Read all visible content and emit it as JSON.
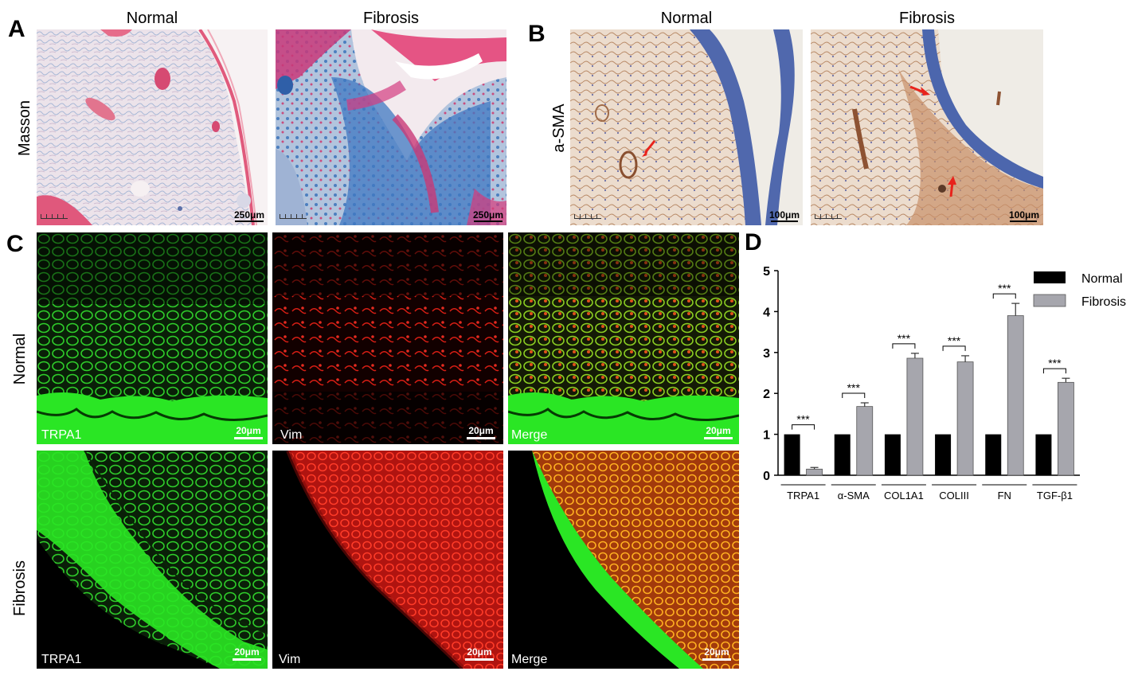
{
  "panels": {
    "a": {
      "letter": "A",
      "columns": [
        "Normal",
        "Fibrosis"
      ],
      "row_label": "Masson",
      "scale_labels": [
        "250μm",
        "250μm"
      ]
    },
    "b": {
      "letter": "B",
      "columns": [
        "Normal",
        "Fibrosis"
      ],
      "row_label": "a-SMA",
      "scale_labels": [
        "100μm",
        "100μm"
      ]
    },
    "c": {
      "letter": "C",
      "rows": [
        "Normal",
        "Fibrosis"
      ],
      "channel_labels": [
        "TRPA1",
        "Vim",
        "Merge"
      ],
      "scale_label": "20μm"
    },
    "d": {
      "letter": "D"
    }
  },
  "colors": {
    "normal_bar": "#000000",
    "fibrosis_bar": "#a6a6ad",
    "arrow": "#e8231c",
    "masson_collagen": "#5b8ec4",
    "masson_muscle": "#d4275e",
    "if_green": "#22e81e",
    "if_red": "#e81a12"
  },
  "chart_data": {
    "type": "bar",
    "categories": [
      "TRPA1",
      "α-SMA",
      "COL1A1",
      "COLIII",
      "FN",
      "TGF-β1"
    ],
    "series": [
      {
        "name": "Normal",
        "values": [
          1,
          1,
          1,
          1,
          1,
          1
        ]
      },
      {
        "name": "Fibrosis",
        "values": [
          0.15,
          1.68,
          2.86,
          2.77,
          3.9,
          2.27
        ],
        "errors": [
          0.04,
          0.09,
          0.12,
          0.15,
          0.3,
          0.1
        ]
      }
    ],
    "significance": [
      "***",
      "***",
      "***",
      "***",
      "***",
      "***"
    ],
    "yticks": [
      "0",
      "1",
      "2",
      "3",
      "4",
      "5"
    ],
    "ylim": [
      0,
      5
    ],
    "legend_position": "top-right"
  }
}
